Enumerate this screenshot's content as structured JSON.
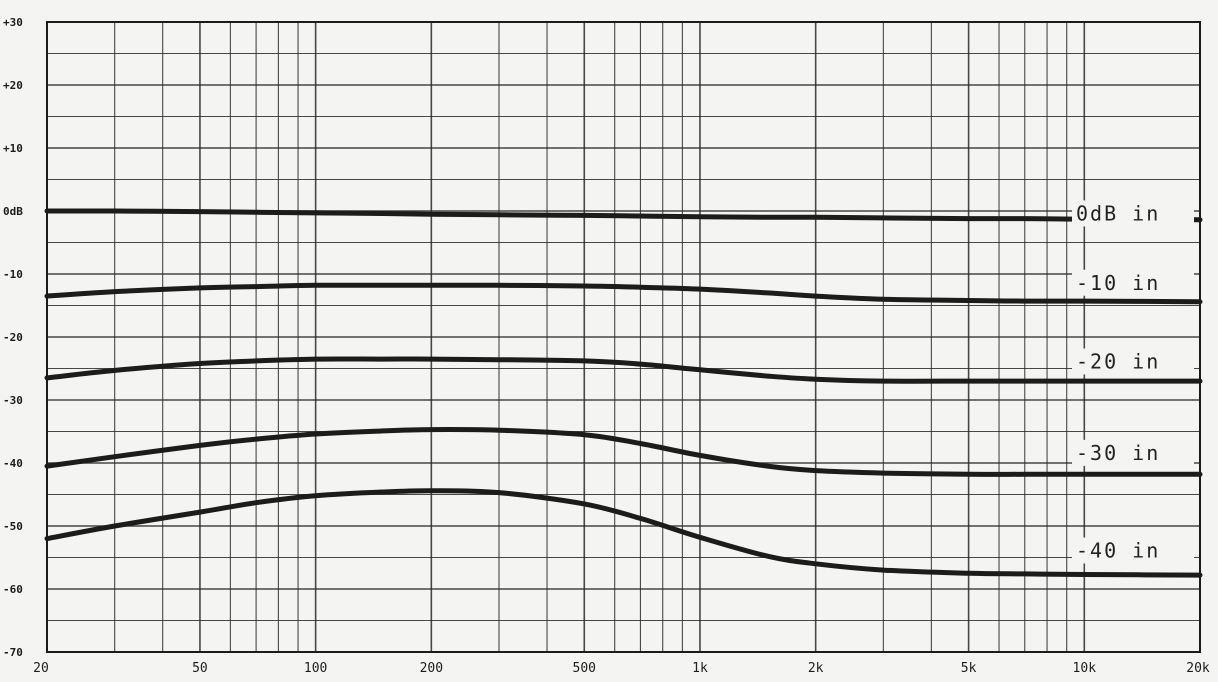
{
  "chart_data": {
    "type": "line",
    "title": "",
    "xlabel": "",
    "ylabel": "",
    "x_scale": "log",
    "xlim": [
      20,
      20000
    ],
    "ylim": [
      -70,
      30
    ],
    "grid": true,
    "x_tick_labels": [
      "20",
      "50",
      "100",
      "200",
      "500",
      "1k",
      "2k",
      "5k",
      "10k",
      "20k"
    ],
    "y_tick_labels": [
      "+30",
      "+20",
      "+10",
      "0dB",
      "-10",
      "-20",
      "-30",
      "-40",
      "-50",
      "-60",
      "-70"
    ],
    "x": [
      20,
      30,
      50,
      70,
      100,
      150,
      200,
      300,
      500,
      700,
      1000,
      1500,
      2000,
      3000,
      5000,
      7000,
      10000,
      20000
    ],
    "series": [
      {
        "name": "0dB in",
        "label_y": -1.5,
        "values": [
          0,
          0,
          -0.1,
          -0.2,
          -0.3,
          -0.4,
          -0.5,
          -0.6,
          -0.7,
          -0.8,
          -0.9,
          -1.0,
          -1.0,
          -1.1,
          -1.2,
          -1.2,
          -1.3,
          -1.4
        ]
      },
      {
        "name": "-10 in",
        "label_y": -12.5,
        "values": [
          -13.5,
          -12.8,
          -12.2,
          -12.0,
          -11.8,
          -11.8,
          -11.8,
          -11.8,
          -11.9,
          -12.1,
          -12.4,
          -13.0,
          -13.5,
          -14.0,
          -14.2,
          -14.3,
          -14.3,
          -14.4
        ]
      },
      {
        "name": "-20 in",
        "label_y": -25,
        "values": [
          -26.5,
          -25.3,
          -24.2,
          -23.8,
          -23.5,
          -23.5,
          -23.5,
          -23.6,
          -23.8,
          -24.3,
          -25.2,
          -26.2,
          -26.7,
          -27.0,
          -27.0,
          -27.0,
          -27.0,
          -27.0
        ]
      },
      {
        "name": "-30 in",
        "label_y": -39.5,
        "values": [
          -40.5,
          -39.0,
          -37.2,
          -36.2,
          -35.4,
          -34.9,
          -34.7,
          -34.8,
          -35.5,
          -36.9,
          -38.8,
          -40.5,
          -41.2,
          -41.6,
          -41.8,
          -41.8,
          -41.8,
          -41.8
        ]
      },
      {
        "name": "-40 in",
        "label_y": -55,
        "values": [
          -52.0,
          -50.0,
          -47.8,
          -46.3,
          -45.2,
          -44.6,
          -44.4,
          -44.7,
          -46.5,
          -48.8,
          -51.8,
          -54.8,
          -56.0,
          -57.0,
          -57.5,
          -57.6,
          -57.7,
          -57.8
        ]
      }
    ]
  }
}
